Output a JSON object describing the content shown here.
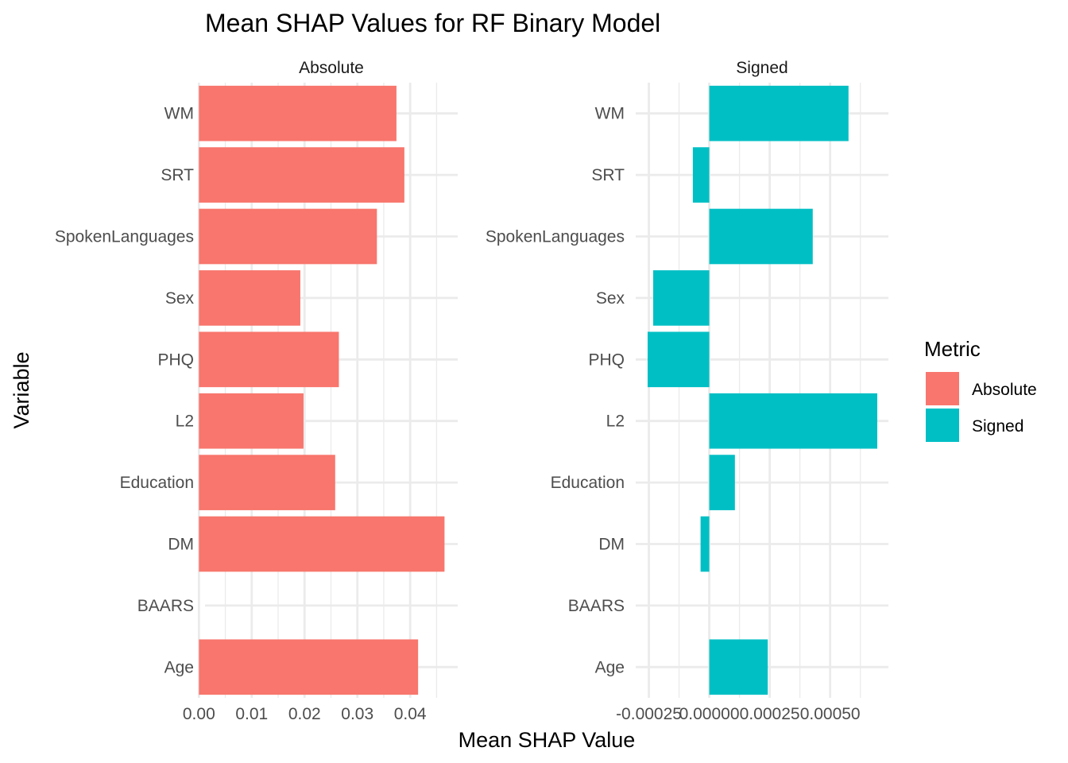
{
  "chart_data": {
    "type": "bar",
    "title": "Mean SHAP Values for RF Binary Model",
    "xlabel": "Mean SHAP Value",
    "ylabel": "Variable",
    "legend": {
      "title": "Metric",
      "position": "right",
      "entries": [
        {
          "label": "Absolute",
          "color": "#F8766D"
        },
        {
          "label": "Signed",
          "color": "#00BFC4"
        }
      ]
    },
    "categories": [
      "Age",
      "BAARS",
      "DM",
      "Education",
      "L2",
      "PHQ",
      "Sex",
      "SpokenLanguages",
      "SRT",
      "WM"
    ],
    "facets": [
      {
        "name": "Absolute",
        "color": "#F8766D",
        "values": [
          0.0415,
          0.0,
          0.0465,
          0.0258,
          0.0198,
          0.0265,
          0.0192,
          0.0337,
          0.0389,
          0.0374
        ],
        "xlim": [
          -0.0005,
          0.049
        ],
        "major_ticks": [
          0.0,
          0.01,
          0.02,
          0.03,
          0.04
        ],
        "tick_labels": [
          "0.00",
          "0.01",
          "0.02",
          "0.03",
          "0.04"
        ]
      },
      {
        "name": "Signed",
        "color": "#00BFC4",
        "values": [
          0.000242,
          0.0,
          -3.6e-05,
          0.000106,
          0.000695,
          -0.000255,
          -0.000232,
          0.000428,
          -6.8e-05,
          0.000576
        ],
        "xlim": [
          -0.000255,
          0.000695
        ],
        "major_ticks": [
          -0.00025,
          0.0,
          0.00025,
          0.0005
        ],
        "tick_labels": [
          "-0.00025",
          "0.00000",
          "0.00025",
          "0.00050"
        ]
      }
    ],
    "grid": true
  }
}
